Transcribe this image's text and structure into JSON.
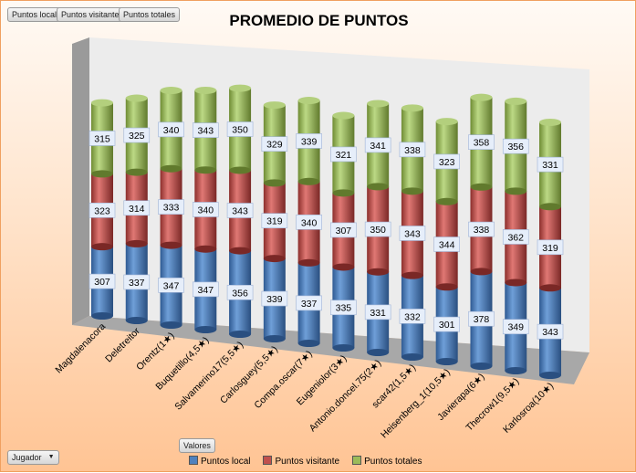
{
  "filter_buttons": [
    "Puntos local",
    "Puntos visitante",
    "Puntos totales"
  ],
  "row_field_button": "Jugador",
  "values_button": "Valores",
  "chart_data": {
    "type": "bar",
    "subtype": "3d-stacked-cylinder",
    "title": "PROMEDIO DE PUNTOS",
    "categories": [
      "Magdalenacora",
      "Deletreitor",
      "Orentz(1★)",
      "Buquetillo(4,5★)",
      "Salvamerino17(5,5★)",
      "Carlosguey(5,5★)",
      "Compa.oscar(7★)",
      "Eugeniolor(3★)",
      "Antonio.doncel.75(2★)",
      "scar42(1,5★)",
      "Heisenberg_1(10,5★)",
      "Javierapa(6★)",
      "Thecrow1(9,5★)",
      "Karlosroa(10★)"
    ],
    "series": [
      {
        "name": "Puntos local",
        "color": "#4f81bd",
        "values": [
          307,
          337,
          347,
          347,
          356,
          339,
          337,
          335,
          331,
          332,
          301,
          378,
          349,
          343
        ]
      },
      {
        "name": "Puntos visitante",
        "color": "#c0504d",
        "values": [
          323,
          314,
          333,
          340,
          343,
          319,
          340,
          307,
          350,
          343,
          344,
          338,
          362,
          319
        ]
      },
      {
        "name": "Puntos totales",
        "color": "#9bbb59",
        "values": [
          315,
          325,
          340,
          343,
          350,
          329,
          339,
          321,
          341,
          338,
          323,
          358,
          356,
          331
        ]
      }
    ],
    "legend": "bottom",
    "grid": false
  }
}
